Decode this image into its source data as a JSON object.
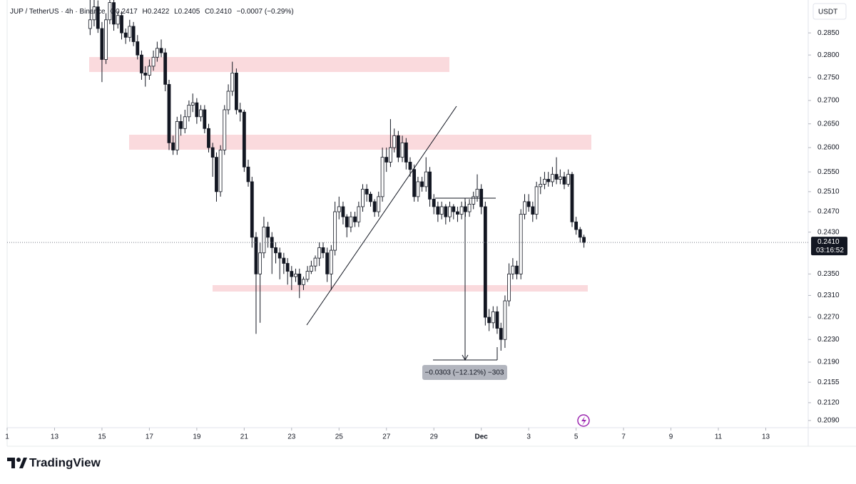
{
  "chart_data": {
    "type": "candlestick",
    "header": {
      "symbol": "JUP / TetherUS · 4h · Binance",
      "open": "O0.2417",
      "high": "H0.2422",
      "low": "L0.2405",
      "close": "C0.2410",
      "change": "−0.0007 (−0.29%)"
    },
    "currency": "USDT",
    "x": [
      14.5,
      14.67,
      14.83,
      15,
      15.17,
      15.33,
      15.5,
      15.67,
      15.83,
      16,
      16.17,
      16.33,
      16.5,
      16.67,
      16.83,
      17,
      17.17,
      17.33,
      17.5,
      17.67,
      17.83,
      18,
      18.17,
      18.33,
      18.5,
      18.67,
      18.83,
      19,
      19.17,
      19.33,
      19.5,
      19.67,
      19.83,
      20,
      20.17,
      20.33,
      20.5,
      20.67,
      20.83,
      21,
      21.17,
      21.33,
      21.5,
      21.67,
      21.83,
      22,
      22.17,
      22.33,
      22.5,
      22.67,
      22.83,
      23,
      23.17,
      23.33,
      23.5,
      23.67,
      23.83,
      24,
      24.17,
      24.33,
      24.5,
      24.67,
      24.83,
      25,
      25.17,
      25.33,
      25.5,
      25.67,
      25.83,
      26,
      26.17,
      26.33,
      26.5,
      26.67,
      26.83,
      27,
      27.17,
      27.33,
      27.5,
      27.67,
      27.83,
      28,
      28.17,
      28.33,
      28.5,
      28.67,
      28.83,
      29,
      29.17,
      29.33,
      29.5,
      29.67,
      29.83,
      30,
      30.17,
      30.33,
      30.5,
      30.67,
      30.83,
      31,
      31.17,
      31.33,
      31.5,
      31.67,
      31.83,
      32,
      32.17,
      32.33,
      32.5,
      32.67,
      32.83,
      33,
      33.17,
      33.33,
      33.5,
      33.67,
      33.83,
      34,
      34.17,
      34.33,
      34.5,
      34.67,
      34.83,
      35,
      35.17,
      35.33
    ],
    "open": [
      0.286,
      0.288,
      0.291,
      0.286,
      0.279,
      0.288,
      0.292,
      0.287,
      0.289,
      0.285,
      0.284,
      0.2865,
      0.283,
      0.28,
      0.276,
      0.2755,
      0.2775,
      0.2795,
      0.2815,
      0.2805,
      0.2735,
      0.261,
      0.2595,
      0.2655,
      0.264,
      0.2665,
      0.269,
      0.2695,
      0.2665,
      0.268,
      0.264,
      0.26,
      0.258,
      0.251,
      0.2595,
      0.268,
      0.272,
      0.276,
      0.268,
      0.2675,
      0.256,
      0.253,
      0.242,
      0.235,
      0.239,
      0.244,
      0.242,
      0.24,
      0.239,
      0.238,
      0.237,
      0.2355,
      0.2345,
      0.235,
      0.233,
      0.234,
      0.2355,
      0.2365,
      0.238,
      0.24,
      0.239,
      0.235,
      0.2395,
      0.247,
      0.248,
      0.246,
      0.244,
      0.246,
      0.245,
      0.248,
      0.2515,
      0.2505,
      0.249,
      0.247,
      0.25,
      0.258,
      0.257,
      0.26,
      0.2625,
      0.258,
      0.261,
      0.257,
      0.2555,
      0.25,
      0.253,
      0.252,
      0.255,
      0.2495,
      0.248,
      0.2465,
      0.248,
      0.246,
      0.248,
      0.247,
      0.2465,
      0.248,
      0.247,
      0.2485,
      0.25,
      0.2515,
      0.248,
      0.227,
      0.226,
      0.228,
      0.225,
      0.223,
      0.23,
      0.235,
      0.2365,
      0.235,
      0.2465,
      0.249,
      0.248,
      0.2465,
      0.252,
      0.2525,
      0.2535,
      0.253,
      0.2545,
      0.2535,
      0.254,
      0.2525,
      0.2545,
      0.245,
      0.2435,
      0.242
    ],
    "high": [
      0.293,
      0.294,
      0.2925,
      0.2875,
      0.2895,
      0.2935,
      0.293,
      0.29,
      0.29,
      0.286,
      0.288,
      0.2875,
      0.2845,
      0.281,
      0.2775,
      0.279,
      0.281,
      0.283,
      0.2835,
      0.2815,
      0.2745,
      0.2625,
      0.2665,
      0.267,
      0.268,
      0.27,
      0.2715,
      0.2705,
      0.269,
      0.269,
      0.265,
      0.261,
      0.259,
      0.2605,
      0.269,
      0.2735,
      0.2785,
      0.277,
      0.2695,
      0.268,
      0.2575,
      0.254,
      0.243,
      0.241,
      0.246,
      0.245,
      0.243,
      0.241,
      0.24,
      0.239,
      0.238,
      0.2365,
      0.236,
      0.236,
      0.2345,
      0.2365,
      0.2375,
      0.2385,
      0.241,
      0.241,
      0.24,
      0.2405,
      0.249,
      0.25,
      0.249,
      0.2465,
      0.247,
      0.247,
      0.249,
      0.2525,
      0.2525,
      0.251,
      0.2495,
      0.251,
      0.26,
      0.26,
      0.266,
      0.264,
      0.2635,
      0.2625,
      0.262,
      0.258,
      0.2565,
      0.254,
      0.254,
      0.258,
      0.256,
      0.2505,
      0.249,
      0.249,
      0.2485,
      0.249,
      0.2485,
      0.248,
      0.249,
      0.249,
      0.2495,
      0.251,
      0.2545,
      0.2525,
      0.249,
      0.2285,
      0.229,
      0.229,
      0.226,
      0.231,
      0.237,
      0.238,
      0.2375,
      0.2475,
      0.2505,
      0.2505,
      0.249,
      0.253,
      0.254,
      0.255,
      0.255,
      0.256,
      0.258,
      0.2555,
      0.255,
      0.2555,
      0.255,
      0.246,
      0.244,
      0.2425
    ],
    "low": [
      0.2845,
      0.2865,
      0.285,
      0.274,
      0.278,
      0.287,
      0.2855,
      0.286,
      0.2835,
      0.2825,
      0.283,
      0.282,
      0.279,
      0.2745,
      0.273,
      0.2745,
      0.2765,
      0.2785,
      0.2795,
      0.272,
      0.2595,
      0.2585,
      0.2585,
      0.2625,
      0.263,
      0.2655,
      0.2675,
      0.265,
      0.2655,
      0.263,
      0.259,
      0.254,
      0.249,
      0.25,
      0.2585,
      0.267,
      0.271,
      0.267,
      0.2655,
      0.255,
      0.252,
      0.24,
      0.224,
      0.226,
      0.238,
      0.24,
      0.235,
      0.237,
      0.234,
      0.235,
      0.233,
      0.232,
      0.2335,
      0.2305,
      0.232,
      0.2335,
      0.235,
      0.2355,
      0.2365,
      0.238,
      0.2335,
      0.232,
      0.2385,
      0.2455,
      0.2445,
      0.242,
      0.243,
      0.244,
      0.244,
      0.247,
      0.249,
      0.248,
      0.246,
      0.246,
      0.249,
      0.255,
      0.256,
      0.259,
      0.257,
      0.257,
      0.2555,
      0.254,
      0.249,
      0.249,
      0.251,
      0.251,
      0.248,
      0.2465,
      0.245,
      0.2455,
      0.2445,
      0.245,
      0.2455,
      0.245,
      0.2455,
      0.246,
      0.246,
      0.2475,
      0.249,
      0.2465,
      0.2255,
      0.2245,
      0.225,
      0.224,
      0.221,
      0.2215,
      0.229,
      0.234,
      0.234,
      0.234,
      0.2455,
      0.247,
      0.245,
      0.2455,
      0.2505,
      0.2515,
      0.252,
      0.252,
      0.2525,
      0.2525,
      0.2515,
      0.252,
      0.244,
      0.2425,
      0.241,
      0.24
    ],
    "close": [
      0.288,
      0.291,
      0.286,
      0.279,
      0.288,
      0.292,
      0.287,
      0.289,
      0.285,
      0.284,
      0.2865,
      0.283,
      0.28,
      0.276,
      0.2755,
      0.2775,
      0.2795,
      0.2815,
      0.2805,
      0.2735,
      0.261,
      0.2595,
      0.2655,
      0.264,
      0.2665,
      0.269,
      0.2695,
      0.2665,
      0.268,
      0.264,
      0.26,
      0.258,
      0.251,
      0.2595,
      0.268,
      0.272,
      0.276,
      0.268,
      0.2675,
      0.256,
      0.253,
      0.242,
      0.235,
      0.239,
      0.244,
      0.242,
      0.24,
      0.239,
      0.238,
      0.237,
      0.2355,
      0.2345,
      0.235,
      0.233,
      0.234,
      0.2355,
      0.2365,
      0.238,
      0.24,
      0.239,
      0.235,
      0.2395,
      0.247,
      0.248,
      0.246,
      0.244,
      0.246,
      0.245,
      0.248,
      0.2515,
      0.2505,
      0.249,
      0.247,
      0.25,
      0.258,
      0.257,
      0.26,
      0.2625,
      0.258,
      0.261,
      0.257,
      0.2555,
      0.25,
      0.253,
      0.252,
      0.255,
      0.2495,
      0.248,
      0.2465,
      0.248,
      0.246,
      0.248,
      0.247,
      0.2465,
      0.248,
      0.247,
      0.2485,
      0.25,
      0.2515,
      0.248,
      0.227,
      0.226,
      0.228,
      0.225,
      0.223,
      0.23,
      0.235,
      0.2365,
      0.235,
      0.2465,
      0.249,
      0.248,
      0.2465,
      0.252,
      0.2525,
      0.2535,
      0.253,
      0.2545,
      0.2535,
      0.254,
      0.2525,
      0.2545,
      0.245,
      0.2435,
      0.242,
      0.241
    ],
    "up_color": "#ffffff",
    "down_color": "#131722",
    "outline_color": "#131722",
    "xlim": [
      11,
      44.7
    ],
    "xticks": [
      {
        "value": 11,
        "label": "1"
      },
      13,
      15,
      17,
      19,
      21,
      23,
      25,
      27,
      29,
      {
        "value": 31,
        "label": "Dec"
      },
      {
        "value": 33,
        "label": "3"
      },
      {
        "value": 35,
        "label": "5"
      },
      {
        "value": 37,
        "label": "7"
      },
      {
        "value": 39,
        "label": "9"
      },
      {
        "value": 41,
        "label": "11"
      },
      {
        "value": 43,
        "label": "13"
      }
    ],
    "ylim": [
      0.2078,
      0.2926
    ],
    "log_scale": true,
    "yticks": [
      {
        "value": 0.285,
        "label": "0.2850"
      },
      {
        "value": 0.28,
        "label": "0.2800"
      },
      {
        "value": 0.275,
        "label": "0.2750"
      },
      {
        "value": 0.27,
        "label": "0.2700"
      },
      {
        "value": 0.265,
        "label": "0.2650"
      },
      {
        "value": 0.26,
        "label": "0.2600"
      },
      {
        "value": 0.255,
        "label": "0.2550"
      },
      {
        "value": 0.251,
        "label": "0.2510"
      },
      {
        "value": 0.247,
        "label": "0.2470"
      },
      {
        "value": 0.243,
        "label": "0.2430"
      },
      {
        "value": 0.235,
        "label": "0.2350"
      },
      {
        "value": 0.231,
        "label": "0.2310"
      },
      {
        "value": 0.227,
        "label": "0.2270"
      },
      {
        "value": 0.223,
        "label": "0.2230"
      },
      {
        "value": 0.219,
        "label": "0.2190"
      },
      {
        "value": 0.2155,
        "label": "0.2155"
      },
      {
        "value": 0.212,
        "label": "0.2120"
      },
      {
        "value": 0.209,
        "label": "0.2090"
      }
    ],
    "grid": false,
    "last_price": {
      "value": 0.241,
      "label": "0.2410"
    },
    "countdown": "03:16:52",
    "measure_label": "−0.0303 (−12.12%) −303",
    "brand": "TradingView"
  }
}
